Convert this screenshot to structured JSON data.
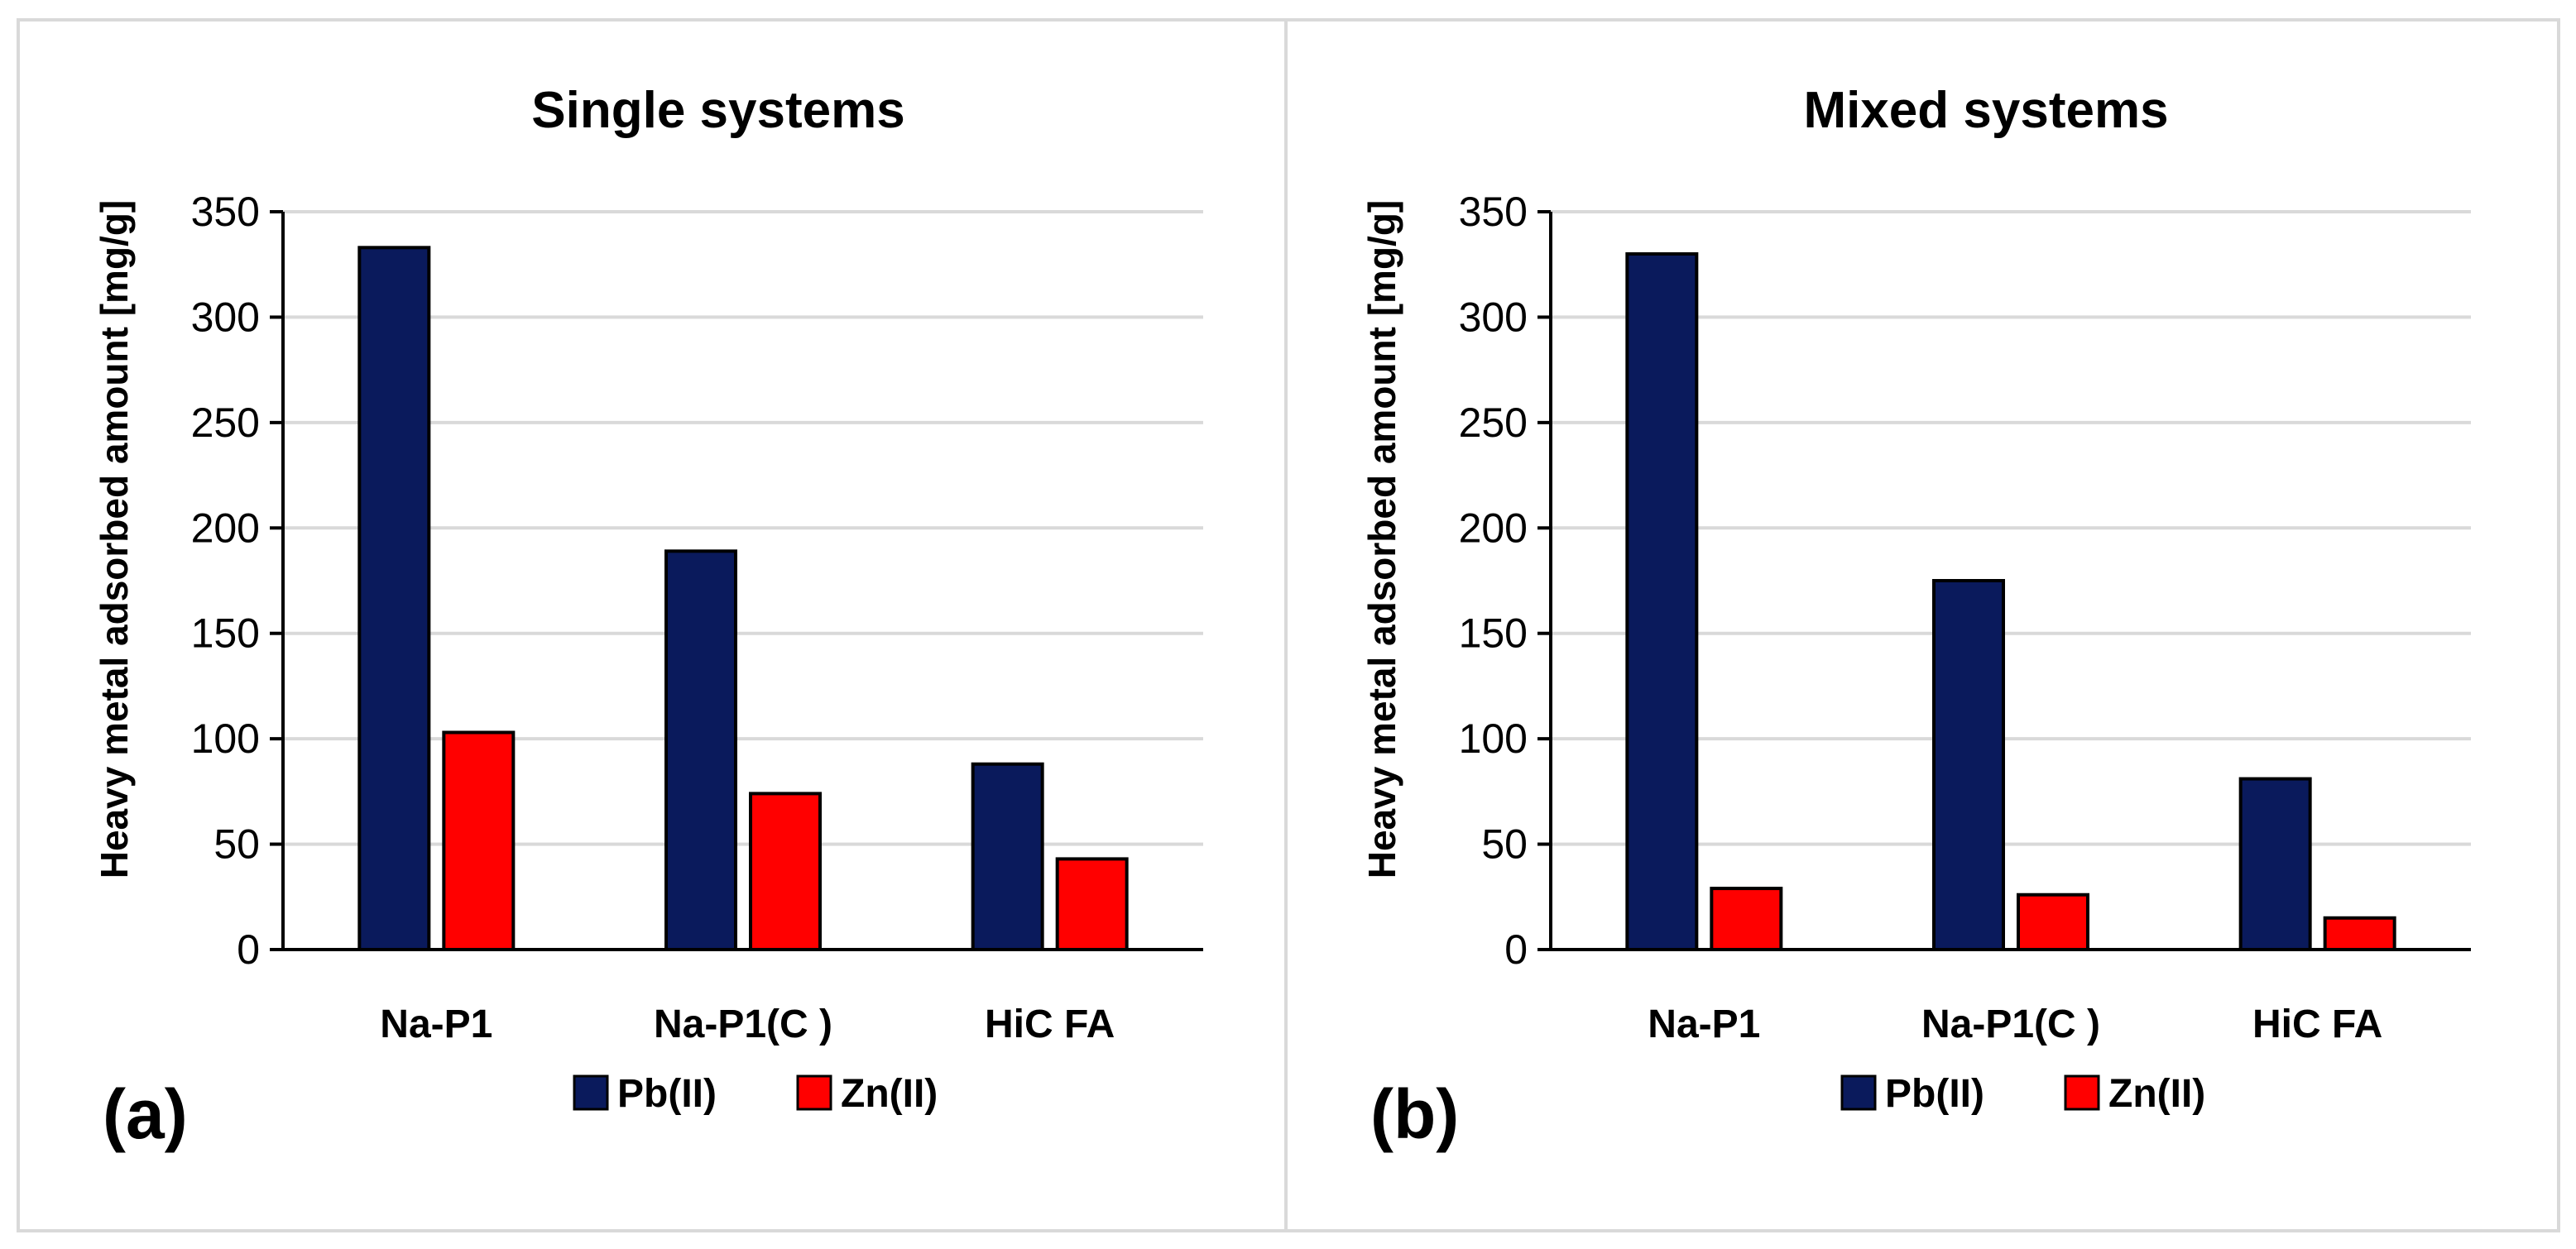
{
  "colors": {
    "pb": "#0a1a5c",
    "zn": "#ff0000",
    "grid": "#d9d9d9",
    "axis": "#000000"
  },
  "chart_data": [
    {
      "type": "bar",
      "panel_label": "(a)",
      "title": "Single systems",
      "ylabel": "Heavy metal adsorbed amount [mg/g]",
      "xlabel": "",
      "ylim": [
        0,
        350
      ],
      "yticks": [
        "0",
        "50",
        "100",
        "150",
        "200",
        "250",
        "300",
        "350"
      ],
      "categories": [
        "Na-P1",
        "Na-P1(C )",
        "HiC FA"
      ],
      "series": [
        {
          "name": "Pb(II)",
          "values": [
            333,
            189,
            88
          ]
        },
        {
          "name": "Zn(II)",
          "values": [
            103,
            74,
            43
          ]
        }
      ],
      "legend": "bottom"
    },
    {
      "type": "bar",
      "panel_label": "(b)",
      "title": "Mixed systems",
      "ylabel": "Heavy metal adsorbed amount [mg/g]",
      "xlabel": "",
      "ylim": [
        0,
        350
      ],
      "yticks": [
        "0",
        "50",
        "100",
        "150",
        "200",
        "250",
        "300",
        "350"
      ],
      "categories": [
        "Na-P1",
        "Na-P1(C )",
        "HiC FA"
      ],
      "series": [
        {
          "name": "Pb(II)",
          "values": [
            330,
            175,
            81
          ]
        },
        {
          "name": "Zn(II)",
          "values": [
            29,
            26,
            15
          ]
        }
      ],
      "legend": "bottom"
    }
  ]
}
